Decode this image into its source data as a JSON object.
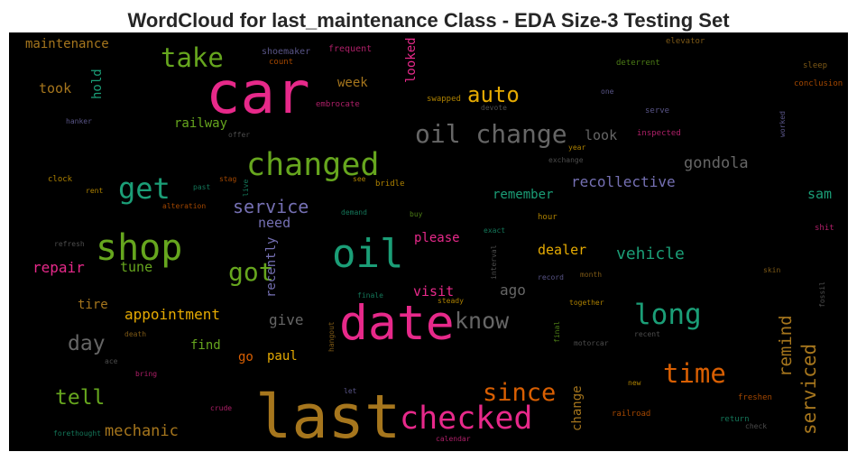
{
  "chart_data": {
    "type": "wordcloud",
    "title": "WordCloud for last_maintenance Class - EDA Size-3 Testing Set",
    "background": "#000000",
    "words": [
      {
        "text": "car",
        "color": "#e7298a"
      },
      {
        "text": "last",
        "color": "#a6761d"
      },
      {
        "text": "oil",
        "color": "#1b9e77"
      },
      {
        "text": "date",
        "color": "#e7298a"
      },
      {
        "text": "shop",
        "color": "#66a61e"
      },
      {
        "text": "changed",
        "color": "#66a61e"
      },
      {
        "text": "checked",
        "color": "#e7298a"
      },
      {
        "text": "get",
        "color": "#1b9e77"
      },
      {
        "text": "oil change",
        "color": "#666666"
      },
      {
        "text": "long",
        "color": "#1b9e77"
      },
      {
        "text": "take",
        "color": "#66a61e"
      },
      {
        "text": "time",
        "color": "#d95f02"
      },
      {
        "text": "since",
        "color": "#d95f02"
      },
      {
        "text": "know",
        "color": "#666666"
      },
      {
        "text": "got",
        "color": "#66a61e"
      },
      {
        "text": "auto",
        "color": "#e6ab02"
      },
      {
        "text": "tell",
        "color": "#66a61e"
      },
      {
        "text": "day",
        "color": "#666666"
      },
      {
        "text": "serviced",
        "color": "#a6761d"
      },
      {
        "text": "remind",
        "color": "#a6761d"
      },
      {
        "text": "service",
        "color": "#7570b3"
      },
      {
        "text": "gondola",
        "color": "#666666"
      },
      {
        "text": "recollective",
        "color": "#7570b3"
      },
      {
        "text": "vehicle",
        "color": "#1b9e77"
      },
      {
        "text": "mechanic",
        "color": "#a6761d"
      },
      {
        "text": "appointment",
        "color": "#e6ab02"
      },
      {
        "text": "repair",
        "color": "#e7298a"
      },
      {
        "text": "tune",
        "color": "#66a61e"
      },
      {
        "text": "need",
        "color": "#7570b3"
      },
      {
        "text": "remember",
        "color": "#1b9e77"
      },
      {
        "text": "dealer",
        "color": "#e6ab02"
      },
      {
        "text": "please",
        "color": "#e7298a"
      },
      {
        "text": "visit",
        "color": "#e7298a"
      },
      {
        "text": "ago",
        "color": "#666666"
      },
      {
        "text": "give",
        "color": "#666666"
      },
      {
        "text": "find",
        "color": "#66a61e"
      },
      {
        "text": "paul",
        "color": "#e6ab02"
      },
      {
        "text": "go",
        "color": "#d95f02"
      },
      {
        "text": "tire",
        "color": "#a6761d"
      },
      {
        "text": "recently",
        "color": "#7570b3"
      },
      {
        "text": "change",
        "color": "#a6761d"
      },
      {
        "text": "sam",
        "color": "#1b9e77"
      },
      {
        "text": "look",
        "color": "#666666"
      },
      {
        "text": "maintenance",
        "color": "#a6761d"
      },
      {
        "text": "took",
        "color": "#a6761d"
      },
      {
        "text": "hold",
        "color": "#1b9e77"
      },
      {
        "text": "railway",
        "color": "#66a61e"
      },
      {
        "text": "week",
        "color": "#a6761d"
      },
      {
        "text": "looked",
        "color": "#e7298a"
      },
      {
        "text": "shoemaker",
        "color": "#7570b3"
      },
      {
        "text": "count",
        "color": "#d95f02"
      },
      {
        "text": "frequent",
        "color": "#e7298a"
      },
      {
        "text": "elevator",
        "color": "#a6761d"
      },
      {
        "text": "deterrent",
        "color": "#66a61e"
      },
      {
        "text": "sleep",
        "color": "#a6761d"
      },
      {
        "text": "conclusion",
        "color": "#d95f02"
      },
      {
        "text": "one",
        "color": "#7570b3"
      },
      {
        "text": "serve",
        "color": "#7570b3"
      },
      {
        "text": "worked",
        "color": "#7570b3"
      },
      {
        "text": "swapped",
        "color": "#e6ab02"
      },
      {
        "text": "embrocate",
        "color": "#e7298a"
      },
      {
        "text": "devote",
        "color": "#666666"
      },
      {
        "text": "hanker",
        "color": "#7570b3"
      },
      {
        "text": "offer",
        "color": "#666666"
      },
      {
        "text": "inspected",
        "color": "#e7298a"
      },
      {
        "text": "year",
        "color": "#e6ab02"
      },
      {
        "text": "exchange",
        "color": "#666666"
      },
      {
        "text": "clock",
        "color": "#e6ab02"
      },
      {
        "text": "rent",
        "color": "#e6ab02"
      },
      {
        "text": "past",
        "color": "#1b9e77"
      },
      {
        "text": "stag",
        "color": "#d95f02"
      },
      {
        "text": "live",
        "color": "#1b9e77"
      },
      {
        "text": "see",
        "color": "#e6ab02"
      },
      {
        "text": "bridle",
        "color": "#e6ab02"
      },
      {
        "text": "alteration",
        "color": "#d95f02"
      },
      {
        "text": "demand",
        "color": "#1b9e77"
      },
      {
        "text": "buy",
        "color": "#66a61e"
      },
      {
        "text": "hour",
        "color": "#e6ab02"
      },
      {
        "text": "exact",
        "color": "#1b9e77"
      },
      {
        "text": "shit",
        "color": "#e7298a"
      },
      {
        "text": "refresh",
        "color": "#666666"
      },
      {
        "text": "interval",
        "color": "#666666"
      },
      {
        "text": "month",
        "color": "#a6761d"
      },
      {
        "text": "record",
        "color": "#7570b3"
      },
      {
        "text": "skin",
        "color": "#a6761d"
      },
      {
        "text": "fossil",
        "color": "#666666"
      },
      {
        "text": "finale",
        "color": "#1b9e77"
      },
      {
        "text": "steady",
        "color": "#e6ab02"
      },
      {
        "text": "together",
        "color": "#e6ab02"
      },
      {
        "text": "hangout",
        "color": "#a6761d"
      },
      {
        "text": "final",
        "color": "#66a61e"
      },
      {
        "text": "death",
        "color": "#a6761d"
      },
      {
        "text": "motorcar",
        "color": "#666666"
      },
      {
        "text": "recent",
        "color": "#666666"
      },
      {
        "text": "ace",
        "color": "#666666"
      },
      {
        "text": "bring",
        "color": "#e7298a"
      },
      {
        "text": "new",
        "color": "#e6ab02"
      },
      {
        "text": "let",
        "color": "#7570b3"
      },
      {
        "text": "crude",
        "color": "#e7298a"
      },
      {
        "text": "freshen",
        "color": "#d95f02"
      },
      {
        "text": "railroad",
        "color": "#d95f02"
      },
      {
        "text": "return",
        "color": "#1b9e77"
      },
      {
        "text": "check",
        "color": "#666666"
      },
      {
        "text": "forethought",
        "color": "#1b9e77"
      },
      {
        "text": "calendar",
        "color": "#e7298a"
      }
    ]
  }
}
